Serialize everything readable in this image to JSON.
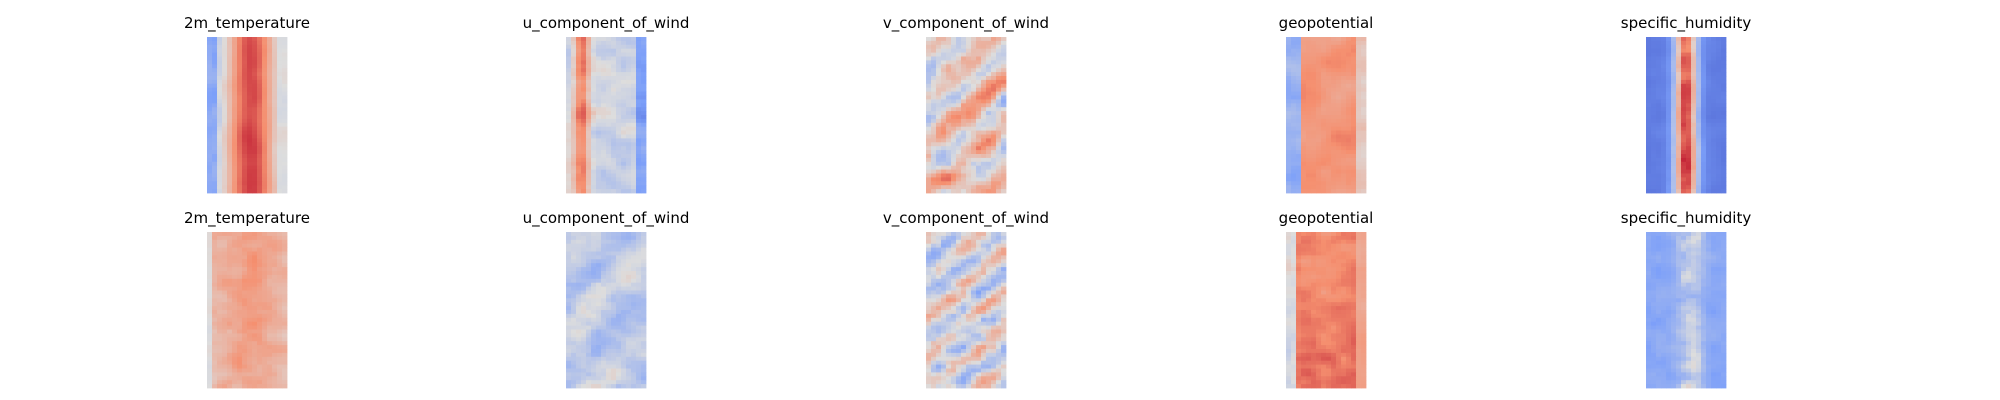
{
  "chart_data": {
    "type": "heatmap",
    "colormap": "coolwarm",
    "grid": false,
    "axes": "off",
    "rows": 2,
    "columns": 5,
    "panels": [
      {
        "row": 0,
        "title": "2m_temperature",
        "pattern": "temperature"
      },
      {
        "row": 0,
        "title": "u_component_of_wind",
        "pattern": "uwind"
      },
      {
        "row": 0,
        "title": "v_component_of_wind",
        "pattern": "vwind"
      },
      {
        "row": 0,
        "title": "geopotential",
        "pattern": "geopotential"
      },
      {
        "row": 0,
        "title": "specific_humidity",
        "pattern": "humidity"
      },
      {
        "row": 1,
        "title": "2m_temperature",
        "pattern": "temperature_light"
      },
      {
        "row": 1,
        "title": "u_component_of_wind",
        "pattern": "uwind_light"
      },
      {
        "row": 1,
        "title": "v_component_of_wind",
        "pattern": "vwind_light"
      },
      {
        "row": 1,
        "title": "geopotential",
        "pattern": "geopotential_light"
      },
      {
        "row": 1,
        "title": "specific_humidity",
        "pattern": "humidity_light"
      }
    ]
  }
}
